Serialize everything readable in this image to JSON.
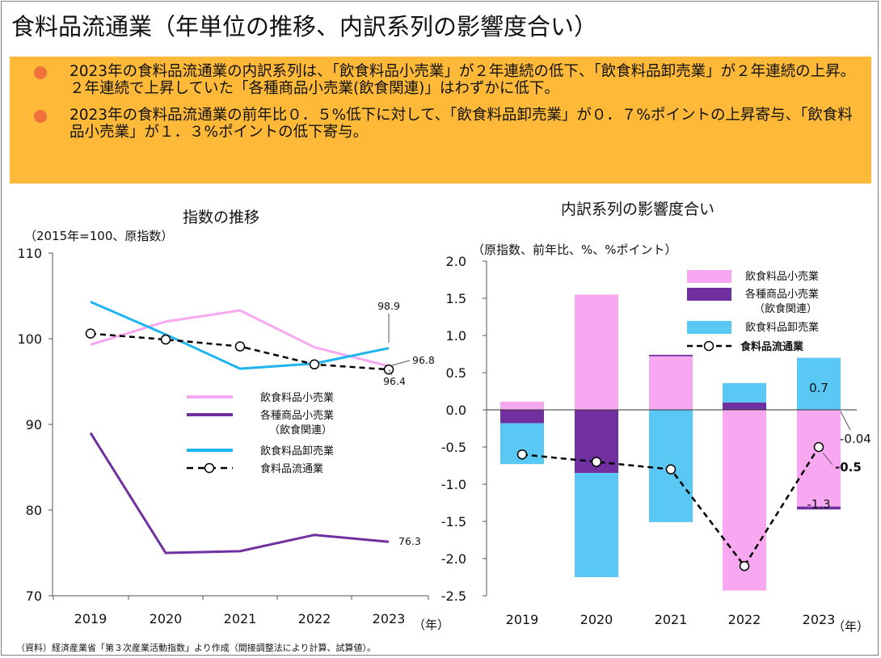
{
  "page": {
    "title": "食料品流通業（年単位の推移、内訳系列の影響度合い）",
    "bullets": [
      "2023年の食料品流通業の内訳系列は、「飲食料品小売業」が２年連続の低下、「飲食料品卸売業」が２年連続の上昇。２年連続で上昇していた「各種商品小売業(飲食関連)」はわずかに低下。",
      "2023年の食料品流通業の前年比０．５%低下に対して、「飲食料品卸売業」が０．７%ポイントの上昇寄与、「飲食料品小売業」が１．３%ポイントの低下寄与。"
    ],
    "source": "（資料）経済産業省「第３次産業活動指数」より作成（間接調整法により計算、試算値）。"
  },
  "colors": {
    "retail": "#f7a8f0",
    "general": "#7030a0",
    "wholesale": "#1eb4f0",
    "wholesale_bar": "#5ac8f5",
    "total": "#000000",
    "summary_bg": "#fdb937",
    "bullet": "#f0723a"
  },
  "chart_data": [
    {
      "type": "line",
      "title": "指数の推移",
      "unit_label": "（2015年=100、原指数）",
      "xlabel": "（年）",
      "categories": [
        "2019",
        "2020",
        "2021",
        "2022",
        "2023"
      ],
      "ylim": [
        70,
        110
      ],
      "yticks": [
        70,
        80,
        90,
        100,
        110
      ],
      "series": [
        {
          "key": "retail",
          "name": "飲食料品小売業",
          "values": [
            99.3,
            102.0,
            103.3,
            99.0,
            96.8
          ]
        },
        {
          "key": "general",
          "name": "各種商品小売業（飲食関連）",
          "name_lines": [
            "各種商品小売業",
            "（飲食関連）"
          ],
          "values": [
            89.0,
            75.0,
            75.2,
            77.1,
            76.3
          ]
        },
        {
          "key": "wholesale",
          "name": "飲食料品卸売業",
          "values": [
            104.3,
            100.5,
            96.5,
            97.1,
            98.9
          ]
        },
        {
          "key": "total",
          "name": "食料品流通業",
          "values": [
            100.6,
            99.9,
            99.1,
            97.0,
            96.4
          ]
        }
      ],
      "labels": [
        {
          "series": "wholesale",
          "index": 4,
          "text": "98.9"
        },
        {
          "series": "retail",
          "index": 4,
          "text": "96.8"
        },
        {
          "series": "total",
          "index": 4,
          "text": "96.4"
        },
        {
          "series": "general",
          "index": 4,
          "text": "76.3"
        }
      ]
    },
    {
      "type": "bar",
      "title": "内訳系列の影響度合い",
      "unit_label": "（原指数、前年比、%、%ポイント）",
      "xlabel": "（年）",
      "categories": [
        "2019",
        "2020",
        "2021",
        "2022",
        "2023"
      ],
      "ylim": [
        -2.5,
        2.0
      ],
      "yticks": [
        2.0,
        1.5,
        1.0,
        0.5,
        0.0,
        -0.5,
        -1.0,
        -1.5,
        -2.0,
        -2.5
      ],
      "stacked": true,
      "series": [
        {
          "key": "retail",
          "name": "飲食料品小売業",
          "values": [
            0.11,
            1.55,
            0.72,
            -2.43,
            -1.3
          ]
        },
        {
          "key": "general",
          "name": "各種商品小売業（飲食関連）",
          "name_lines": [
            "各種商品小売業",
            "（飲食関連）"
          ],
          "values": [
            -0.18,
            -0.85,
            0.02,
            0.1,
            -0.04
          ]
        },
        {
          "key": "wholesale",
          "name": "飲食料品卸売業",
          "values": [
            -0.55,
            -1.4,
            -1.51,
            0.26,
            0.7
          ]
        }
      ],
      "line": {
        "key": "total",
        "name": "食料品流通業",
        "values": [
          -0.6,
          -0.7,
          -0.8,
          -2.1,
          -0.5
        ]
      },
      "labels": [
        {
          "text": "0.7",
          "category": 4,
          "series": "wholesale"
        },
        {
          "text": "-0.04",
          "category": 4,
          "series": "general"
        },
        {
          "text": "-0.5",
          "category": 4,
          "series": "total"
        },
        {
          "text": "-1.3",
          "category": 4,
          "series": "retail"
        }
      ]
    }
  ]
}
